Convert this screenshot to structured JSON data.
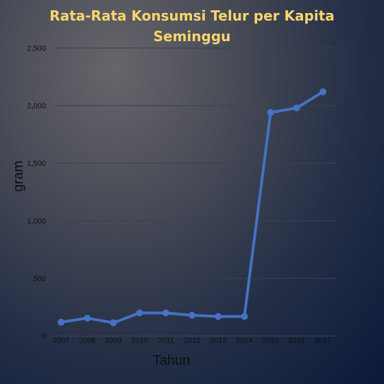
{
  "chart_data": {
    "type": "line",
    "title_lines": [
      "Rata-Rata Konsumsi Telur per Kapita",
      "Seminggu"
    ],
    "xlabel": "Tahun",
    "ylabel": "gram",
    "categories": [
      "2007",
      "2008",
      "2009",
      "2010",
      "2011",
      "2012",
      "2013",
      "2014",
      "2015",
      "2016",
      "2017"
    ],
    "series": [
      {
        "values": [
          120,
          155,
          115,
          200,
          200,
          180,
          170,
          170,
          1940,
          1980,
          2120
        ],
        "color": "#4472c4"
      }
    ],
    "ylim": [
      0,
      2500
    ],
    "yticks": [
      0,
      500,
      1000,
      1500,
      2000,
      2500
    ],
    "ytick_labels": [
      "0",
      "500",
      "1,000",
      "1,500",
      "2,000",
      "2,500"
    ],
    "grid": true,
    "grid_color": "#3c4150"
  }
}
